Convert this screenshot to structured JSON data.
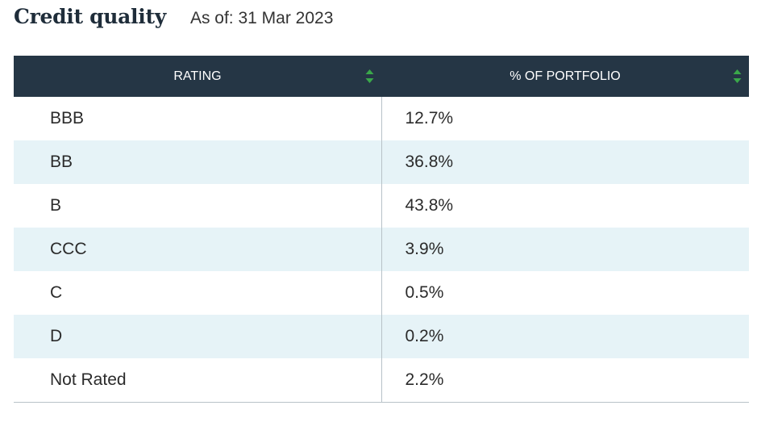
{
  "header": {
    "title": "Credit quality",
    "as_of": "As of: 31 Mar 2023"
  },
  "table": {
    "columns": [
      {
        "label": "RATING",
        "sort_icon": "sort-up-down-icon"
      },
      {
        "label": "% OF PORTFOLIO",
        "sort_icon": "sort-up-down-icon"
      }
    ],
    "rows": [
      {
        "rating": "BBB",
        "pct": "12.7%"
      },
      {
        "rating": "BB",
        "pct": "36.8%"
      },
      {
        "rating": "B",
        "pct": "43.8%"
      },
      {
        "rating": "CCC",
        "pct": "3.9%"
      },
      {
        "rating": "C",
        "pct": "0.5%"
      },
      {
        "rating": "D",
        "pct": "0.2%"
      },
      {
        "rating": "Not Rated",
        "pct": "2.2%"
      }
    ]
  },
  "colors": {
    "header_bg": "#253645",
    "row_stripe": "#e6f3f7",
    "sort_icon": "#3aa84a"
  }
}
